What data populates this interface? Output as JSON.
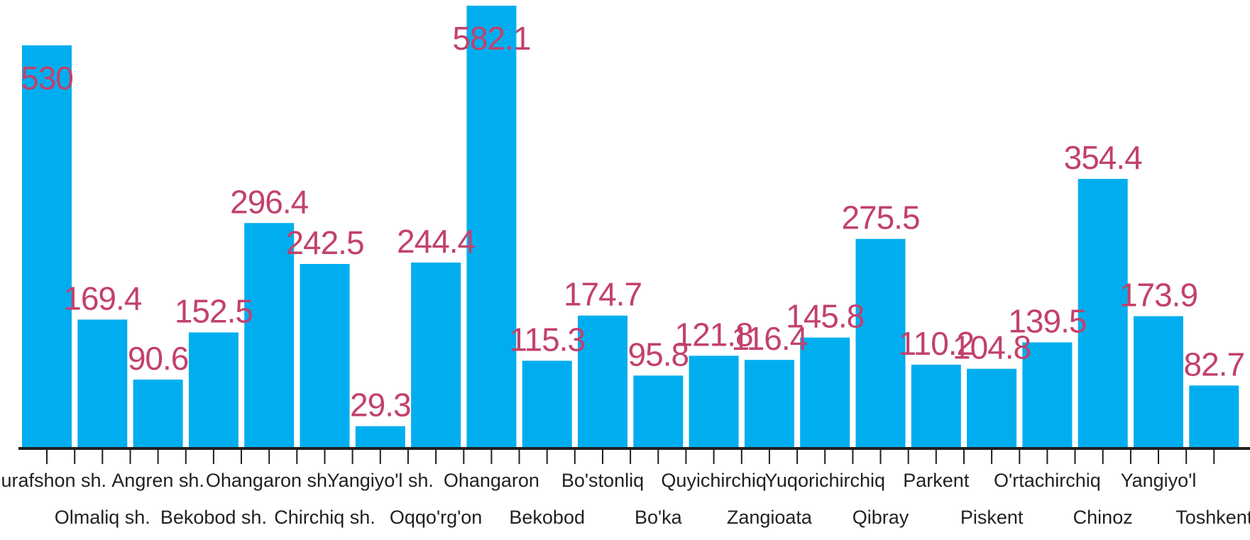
{
  "chart_data": {
    "type": "bar",
    "title": "",
    "xlabel": "",
    "ylabel": "",
    "ylim": [
      0,
      582.1
    ],
    "grid": false,
    "colors": {
      "bar": "#00AEEF",
      "label": "#C2416C",
      "axis": "#231F20"
    },
    "categories": [
      "Nurafshon sh.",
      "Olmaliq sh.",
      "Angren sh.",
      "Bekobod sh.",
      "Ohangaron sh.",
      "Chirchiq sh.",
      "Yangiyo'l sh.",
      "Oqqo'rg'on",
      "Ohangaron",
      "Bekobod",
      "Bo'stonliq",
      "Bo'ka",
      "Quyichirchiq",
      "Zangioata",
      "Yuqorichirchiq",
      "Qibray",
      "Parkent",
      "Piskent",
      "O'rtachirchiq",
      "Chinoz",
      "Yangiyo'l",
      "Toshkent"
    ],
    "values": [
      530,
      169.4,
      90.6,
      152.5,
      296.4,
      242.5,
      29.3,
      244.4,
      582.1,
      115.3,
      174.7,
      95.8,
      121.8,
      116.4,
      145.8,
      275.5,
      110.2,
      104.8,
      139.5,
      354.4,
      173.9,
      82.7
    ],
    "value_labels": [
      "530",
      "169.4",
      "90.6",
      "152.5",
      "296.4",
      "242.5",
      "29.3",
      "244.4",
      "582.1",
      "115.3",
      "174.7",
      "95.8",
      "121.8",
      "116.4",
      "145.8",
      "275.5",
      "110.2",
      "104.8",
      "139.5",
      "354.4",
      "173.9",
      "82.7"
    ]
  }
}
